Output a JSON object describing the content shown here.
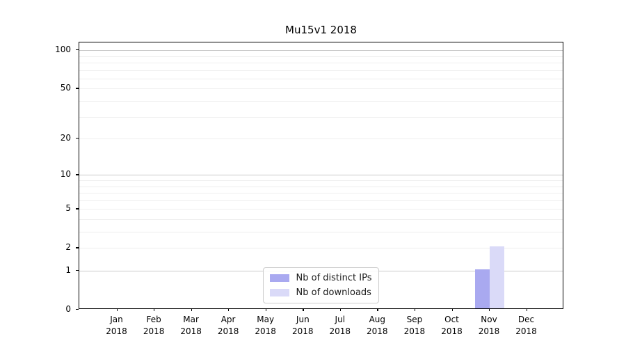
{
  "title": "Mu15v1 2018",
  "chart_data": {
    "type": "bar",
    "title": "Mu15v1 2018",
    "categories": [
      "Jan",
      "Feb",
      "Mar",
      "Apr",
      "May",
      "Jun",
      "Jul",
      "Aug",
      "Sep",
      "Oct",
      "Nov",
      "Dec"
    ],
    "x_year": "2018",
    "series": [
      {
        "name": "Nb of distinct IPs",
        "color": "#a9a9f0",
        "values": [
          0,
          0,
          0,
          0,
          0,
          0,
          0,
          0,
          0,
          0,
          1,
          0
        ]
      },
      {
        "name": "Nb of downloads",
        "color": "#dadaf8",
        "values": [
          0,
          0,
          0,
          0,
          0,
          0,
          0,
          0,
          0,
          0,
          2,
          0
        ]
      }
    ],
    "y_ticks": [
      0,
      1,
      2,
      5,
      10,
      20,
      50,
      100
    ],
    "y_scale": "log10(1+v)",
    "ylim": [
      0,
      115
    ],
    "major_grid_values": [
      1,
      10,
      100
    ],
    "minor_grid_values": [
      2,
      3,
      4,
      5,
      6,
      7,
      8,
      9,
      20,
      30,
      40,
      50,
      60,
      70,
      80,
      90
    ],
    "grid": "horizontal",
    "legend_position": "lower center"
  }
}
